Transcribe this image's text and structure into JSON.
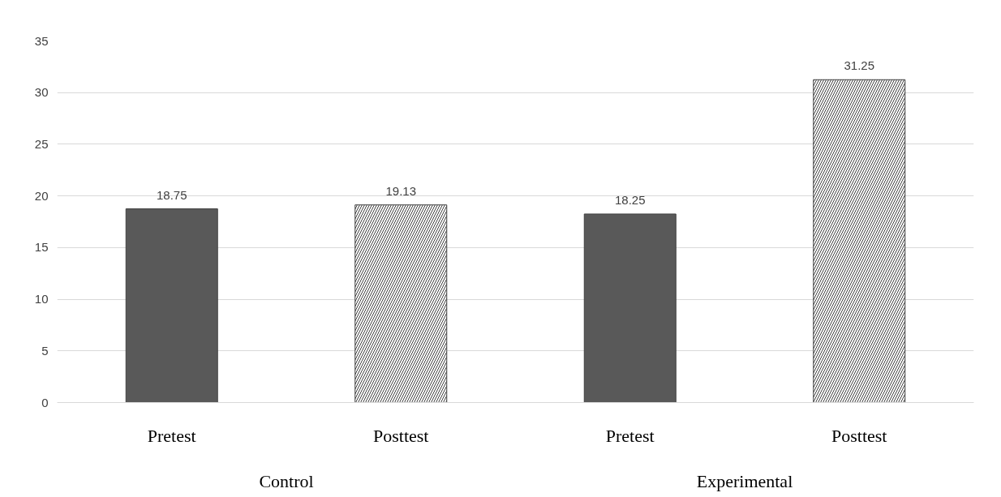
{
  "chart_data": {
    "type": "bar",
    "categories": [
      "Control",
      "Experimental"
    ],
    "series": [
      {
        "name": "Pretest",
        "color": "#595959",
        "values": [
          18.75,
          18.25
        ]
      },
      {
        "name": "Posttest",
        "color": "#ffffff",
        "values": [
          19.13,
          31.25
        ]
      }
    ],
    "ylim": [
      0,
      35
    ],
    "yticks": [
      0,
      5,
      10,
      15,
      20,
      25,
      30,
      35
    ],
    "grid": "y",
    "data_labels": true
  }
}
